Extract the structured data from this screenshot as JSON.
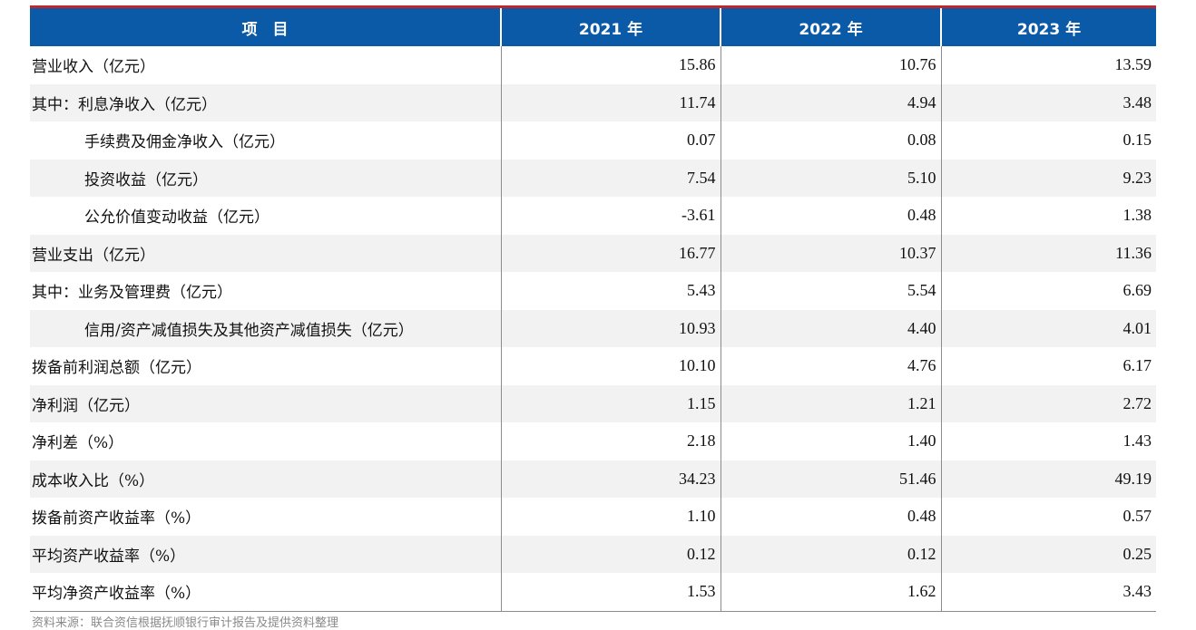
{
  "table": {
    "header": [
      "项　目",
      "2021 年",
      "2022 年",
      "2023 年"
    ],
    "rows": [
      {
        "label": "营业收入（亿元）",
        "indent": false,
        "v2021": "15.86",
        "v2022": "10.76",
        "v2023": "13.59"
      },
      {
        "label": "其中：利息净收入（亿元）",
        "indent": false,
        "v2021": "11.74",
        "v2022": "4.94",
        "v2023": "3.48"
      },
      {
        "label": "手续费及佣金净收入（亿元）",
        "indent": true,
        "v2021": "0.07",
        "v2022": "0.08",
        "v2023": "0.15"
      },
      {
        "label": "投资收益（亿元）",
        "indent": true,
        "v2021": "7.54",
        "v2022": "5.10",
        "v2023": "9.23"
      },
      {
        "label": "公允价值变动收益（亿元）",
        "indent": true,
        "v2021": "-3.61",
        "v2022": "0.48",
        "v2023": "1.38"
      },
      {
        "label": "营业支出（亿元）",
        "indent": false,
        "v2021": "16.77",
        "v2022": "10.37",
        "v2023": "11.36"
      },
      {
        "label": "其中：业务及管理费（亿元）",
        "indent": false,
        "v2021": "5.43",
        "v2022": "5.54",
        "v2023": "6.69"
      },
      {
        "label": "信用/资产减值损失及其他资产减值损失（亿元）",
        "indent": true,
        "v2021": "10.93",
        "v2022": "4.40",
        "v2023": "4.01"
      },
      {
        "label": "拨备前利润总额（亿元）",
        "indent": false,
        "v2021": "10.10",
        "v2022": "4.76",
        "v2023": "6.17"
      },
      {
        "label": "净利润（亿元）",
        "indent": false,
        "v2021": "1.15",
        "v2022": "1.21",
        "v2023": "2.72"
      },
      {
        "label": "净利差（%）",
        "indent": false,
        "v2021": "2.18",
        "v2022": "1.40",
        "v2023": "1.43"
      },
      {
        "label": "成本收入比（%）",
        "indent": false,
        "v2021": "34.23",
        "v2022": "51.46",
        "v2023": "49.19"
      },
      {
        "label": "拨备前资产收益率（%）",
        "indent": false,
        "v2021": "1.10",
        "v2022": "0.48",
        "v2023": "0.57"
      },
      {
        "label": "平均资产收益率（%）",
        "indent": false,
        "v2021": "0.12",
        "v2022": "0.12",
        "v2023": "0.25"
      },
      {
        "label": "平均净资产收益率（%）",
        "indent": false,
        "v2021": "1.53",
        "v2022": "1.62",
        "v2023": "3.43"
      }
    ]
  },
  "source": "资料来源：联合资信根据抚顺银行审计报告及提供资料整理",
  "colors": {
    "header_bg": "#0b5aa8",
    "top_rule": "#c0272d",
    "stripe": "#f2f2f2"
  }
}
